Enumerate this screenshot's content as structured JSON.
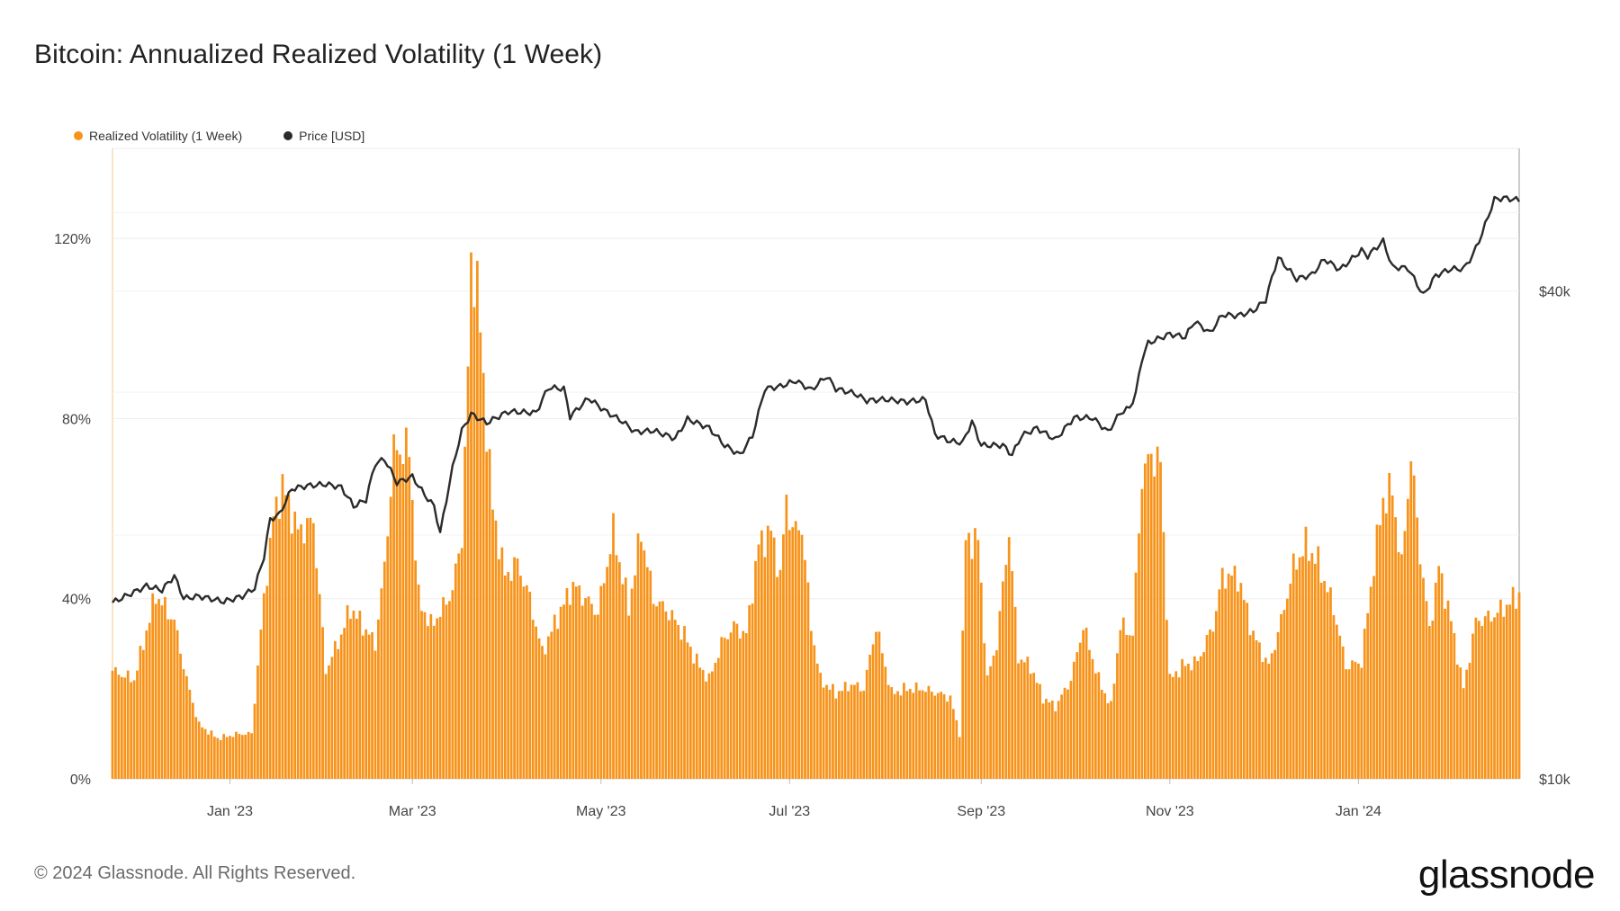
{
  "title": "Bitcoin: Annualized Realized Volatility (1 Week)",
  "legend": [
    {
      "label": "Realized Volatility (1 Week)",
      "color": "#F7931A"
    },
    {
      "label": "Price [USD]",
      "color": "#2b2b2b"
    }
  ],
  "footer": "© 2024 Glassnode. All Rights Reserved.",
  "brand": "glassnode",
  "chart_data": {
    "type": "bar",
    "title": "Bitcoin: Annualized Realized Volatility (1 Week)",
    "x_range": [
      "2022-11-24",
      "2024-02-22"
    ],
    "x_ticks": [
      {
        "date": "2023-01-01",
        "label": "Jan '23"
      },
      {
        "date": "2023-03-01",
        "label": "Mar '23"
      },
      {
        "date": "2023-05-01",
        "label": "May '23"
      },
      {
        "date": "2023-07-01",
        "label": "Jul '23"
      },
      {
        "date": "2023-09-01",
        "label": "Sep '23"
      },
      {
        "date": "2023-11-01",
        "label": "Nov '23"
      },
      {
        "date": "2024-01-01",
        "label": "Jan '24"
      }
    ],
    "y_left": {
      "min": 0,
      "max": 140,
      "ticks": [
        0,
        40,
        80,
        120
      ],
      "tick_labels": [
        "0%",
        "40%",
        "80%",
        "120%"
      ],
      "unit": "%"
    },
    "y_right": {
      "scale": "log",
      "min": 10000,
      "max": 60000,
      "ticks": [
        10000,
        40000
      ],
      "tick_labels": [
        "$10k",
        "$40k"
      ]
    },
    "grid": true,
    "legend_position": "top-left",
    "series": [
      {
        "name": "Realized Volatility (1 Week)",
        "type": "bar",
        "axis": "left",
        "color": "#F7931A",
        "points": [
          [
            "2022-11-24",
            24
          ],
          [
            "2022-12-01",
            22
          ],
          [
            "2022-12-08",
            41
          ],
          [
            "2022-12-14",
            35
          ],
          [
            "2022-12-18",
            22
          ],
          [
            "2022-12-22",
            12
          ],
          [
            "2022-12-28",
            9
          ],
          [
            "2023-01-04",
            10
          ],
          [
            "2023-01-08",
            10
          ],
          [
            "2023-01-12",
            40
          ],
          [
            "2023-01-15",
            58
          ],
          [
            "2023-01-18",
            65
          ],
          [
            "2023-01-23",
            55
          ],
          [
            "2023-01-28",
            57
          ],
          [
            "2023-02-01",
            24
          ],
          [
            "2023-02-06",
            32
          ],
          [
            "2023-02-09",
            38
          ],
          [
            "2023-02-13",
            34
          ],
          [
            "2023-02-17",
            30
          ],
          [
            "2023-02-20",
            47
          ],
          [
            "2023-02-23",
            73
          ],
          [
            "2023-02-28",
            73
          ],
          [
            "2023-03-03",
            40
          ],
          [
            "2023-03-07",
            34
          ],
          [
            "2023-03-11",
            38
          ],
          [
            "2023-03-14",
            42
          ],
          [
            "2023-03-17",
            54
          ],
          [
            "2023-03-19",
            90
          ],
          [
            "2023-03-20",
            115
          ],
          [
            "2023-03-22",
            110
          ],
          [
            "2023-03-24",
            88
          ],
          [
            "2023-03-27",
            60
          ],
          [
            "2023-03-31",
            45
          ],
          [
            "2023-04-04",
            48
          ],
          [
            "2023-04-08",
            40
          ],
          [
            "2023-04-12",
            28
          ],
          [
            "2023-04-17",
            36
          ],
          [
            "2023-04-22",
            43
          ],
          [
            "2023-04-26",
            40
          ],
          [
            "2023-04-30",
            37
          ],
          [
            "2023-05-05",
            55
          ],
          [
            "2023-05-10",
            38
          ],
          [
            "2023-05-14",
            55
          ],
          [
            "2023-05-18",
            40
          ],
          [
            "2023-05-23",
            37
          ],
          [
            "2023-05-28",
            32
          ],
          [
            "2023-06-01",
            26
          ],
          [
            "2023-06-05",
            22
          ],
          [
            "2023-06-09",
            30
          ],
          [
            "2023-06-13",
            34
          ],
          [
            "2023-06-17",
            32
          ],
          [
            "2023-06-21",
            52
          ],
          [
            "2023-06-25",
            55
          ],
          [
            "2023-06-28",
            45
          ],
          [
            "2023-06-30",
            62
          ],
          [
            "2023-07-02",
            55
          ],
          [
            "2023-07-05",
            56
          ],
          [
            "2023-07-08",
            34
          ],
          [
            "2023-07-11",
            22
          ],
          [
            "2023-07-16",
            19
          ],
          [
            "2023-07-21",
            21
          ],
          [
            "2023-07-25",
            20
          ],
          [
            "2023-07-29",
            34
          ],
          [
            "2023-08-03",
            19
          ],
          [
            "2023-08-08",
            20
          ],
          [
            "2023-08-13",
            20
          ],
          [
            "2023-08-18",
            19
          ],
          [
            "2023-08-22",
            18
          ],
          [
            "2023-08-25",
            10
          ],
          [
            "2023-08-27",
            53
          ],
          [
            "2023-08-31",
            53
          ],
          [
            "2023-09-03",
            22
          ],
          [
            "2023-09-06",
            30
          ],
          [
            "2023-09-10",
            55
          ],
          [
            "2023-09-13",
            27
          ],
          [
            "2023-09-17",
            25
          ],
          [
            "2023-09-21",
            18
          ],
          [
            "2023-09-25",
            16
          ],
          [
            "2023-09-30",
            22
          ],
          [
            "2023-10-04",
            34
          ],
          [
            "2023-10-09",
            22
          ],
          [
            "2023-10-13",
            16
          ],
          [
            "2023-10-16",
            34
          ],
          [
            "2023-10-20",
            32
          ],
          [
            "2023-10-23",
            67
          ],
          [
            "2023-10-26",
            72
          ],
          [
            "2023-10-29",
            70
          ],
          [
            "2023-11-01",
            22
          ],
          [
            "2023-11-05",
            25
          ],
          [
            "2023-11-10",
            26
          ],
          [
            "2023-11-15",
            34
          ],
          [
            "2023-11-18",
            45
          ],
          [
            "2023-11-23",
            45
          ],
          [
            "2023-11-28",
            32
          ],
          [
            "2023-12-03",
            25
          ],
          [
            "2023-12-07",
            35
          ],
          [
            "2023-12-11",
            47
          ],
          [
            "2023-12-15",
            52
          ],
          [
            "2023-12-19",
            48
          ],
          [
            "2023-12-24",
            38
          ],
          [
            "2023-12-28",
            25
          ],
          [
            "2024-01-02",
            26
          ],
          [
            "2024-01-06",
            48
          ],
          [
            "2024-01-09",
            62
          ],
          [
            "2024-01-12",
            64
          ],
          [
            "2024-01-15",
            47
          ],
          [
            "2024-01-18",
            72
          ],
          [
            "2024-01-21",
            50
          ],
          [
            "2024-01-24",
            33
          ],
          [
            "2024-01-27",
            47
          ],
          [
            "2024-01-31",
            35
          ],
          [
            "2024-02-04",
            20
          ],
          [
            "2024-02-08",
            35
          ],
          [
            "2024-02-13",
            36
          ],
          [
            "2024-02-17",
            38
          ],
          [
            "2024-02-22",
            41
          ]
        ]
      },
      {
        "name": "Price [USD]",
        "type": "line",
        "axis": "right",
        "color": "#2b2b2b",
        "points": [
          [
            "2022-11-24",
            16500
          ],
          [
            "2022-12-01",
            17000
          ],
          [
            "2022-12-05",
            17300
          ],
          [
            "2022-12-10",
            17100
          ],
          [
            "2022-12-14",
            17800
          ],
          [
            "2022-12-17",
            16700
          ],
          [
            "2022-12-22",
            16800
          ],
          [
            "2022-12-30",
            16550
          ],
          [
            "2023-01-05",
            16800
          ],
          [
            "2023-01-09",
            17200
          ],
          [
            "2023-01-12",
            18800
          ],
          [
            "2023-01-14",
            20900
          ],
          [
            "2023-01-17",
            21200
          ],
          [
            "2023-01-21",
            22800
          ],
          [
            "2023-01-26",
            23000
          ],
          [
            "2023-02-01",
            23100
          ],
          [
            "2023-02-06",
            22900
          ],
          [
            "2023-02-10",
            21700
          ],
          [
            "2023-02-14",
            22100
          ],
          [
            "2023-02-17",
            24500
          ],
          [
            "2023-02-20",
            24800
          ],
          [
            "2023-02-24",
            23200
          ],
          [
            "2023-03-01",
            23600
          ],
          [
            "2023-03-05",
            22400
          ],
          [
            "2023-03-08",
            21700
          ],
          [
            "2023-03-10",
            20100
          ],
          [
            "2023-03-12",
            22100
          ],
          [
            "2023-03-14",
            24200
          ],
          [
            "2023-03-17",
            26900
          ],
          [
            "2023-03-20",
            28200
          ],
          [
            "2023-03-25",
            27500
          ],
          [
            "2023-04-01",
            28400
          ],
          [
            "2023-04-10",
            28300
          ],
          [
            "2023-04-14",
            30400
          ],
          [
            "2023-04-19",
            30300
          ],
          [
            "2023-04-21",
            28000
          ],
          [
            "2023-04-27",
            29500
          ],
          [
            "2023-05-02",
            28500
          ],
          [
            "2023-05-08",
            27600
          ],
          [
            "2023-05-12",
            26800
          ],
          [
            "2023-05-18",
            26900
          ],
          [
            "2023-05-25",
            26300
          ],
          [
            "2023-05-29",
            27800
          ],
          [
            "2023-06-05",
            27100
          ],
          [
            "2023-06-10",
            25800
          ],
          [
            "2023-06-15",
            25100
          ],
          [
            "2023-06-19",
            26500
          ],
          [
            "2023-06-21",
            28300
          ],
          [
            "2023-06-23",
            30300
          ],
          [
            "2023-06-28",
            30500
          ],
          [
            "2023-07-03",
            31000
          ],
          [
            "2023-07-08",
            30200
          ],
          [
            "2023-07-13",
            31400
          ],
          [
            "2023-07-16",
            30300
          ],
          [
            "2023-07-22",
            29900
          ],
          [
            "2023-07-26",
            29300
          ],
          [
            "2023-08-01",
            29400
          ],
          [
            "2023-08-08",
            29200
          ],
          [
            "2023-08-14",
            29400
          ],
          [
            "2023-08-17",
            26600
          ],
          [
            "2023-08-22",
            26100
          ],
          [
            "2023-08-26",
            26000
          ],
          [
            "2023-08-29",
            27600
          ],
          [
            "2023-09-01",
            25800
          ],
          [
            "2023-09-08",
            25800
          ],
          [
            "2023-09-11",
            25100
          ],
          [
            "2023-09-14",
            26500
          ],
          [
            "2023-09-19",
            27100
          ],
          [
            "2023-09-25",
            26200
          ],
          [
            "2023-10-01",
            27900
          ],
          [
            "2023-10-07",
            27900
          ],
          [
            "2023-10-12",
            26800
          ],
          [
            "2023-10-16",
            28300
          ],
          [
            "2023-10-19",
            28700
          ],
          [
            "2023-10-21",
            29900
          ],
          [
            "2023-10-23",
            33000
          ],
          [
            "2023-10-25",
            34500
          ],
          [
            "2023-11-01",
            35400
          ],
          [
            "2023-11-06",
            35100
          ],
          [
            "2023-11-09",
            36700
          ],
          [
            "2023-11-14",
            35500
          ],
          [
            "2023-11-18",
            37400
          ],
          [
            "2023-11-23",
            37300
          ],
          [
            "2023-11-28",
            37800
          ],
          [
            "2023-12-02",
            39000
          ],
          [
            "2023-12-06",
            44000
          ],
          [
            "2023-12-12",
            41400
          ],
          [
            "2023-12-17",
            41900
          ],
          [
            "2023-12-21",
            43800
          ],
          [
            "2023-12-26",
            42500
          ],
          [
            "2024-01-02",
            44900
          ],
          [
            "2024-01-04",
            44200
          ],
          [
            "2024-01-09",
            46100
          ],
          [
            "2024-01-12",
            42800
          ],
          [
            "2024-01-17",
            42700
          ],
          [
            "2024-01-22",
            39500
          ],
          [
            "2024-01-26",
            41800
          ],
          [
            "2024-01-31",
            42600
          ],
          [
            "2024-02-04",
            42600
          ],
          [
            "2024-02-07",
            44300
          ],
          [
            "2024-02-10",
            47100
          ],
          [
            "2024-02-14",
            51900
          ],
          [
            "2024-02-17",
            52100
          ],
          [
            "2024-02-22",
            51800
          ]
        ]
      }
    ]
  }
}
